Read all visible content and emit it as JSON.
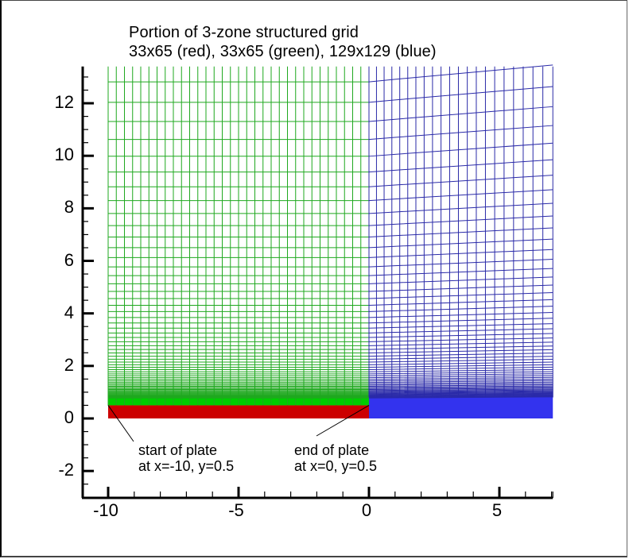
{
  "title": {
    "line1": "Portion of 3-zone structured grid",
    "line2": "33x65 (red), 33x65 (green), 129x129 (blue)"
  },
  "colors": {
    "red_zone": "#cc0000",
    "green_zone": "#00cc00",
    "green_lines": "#1fa81f",
    "blue_zone": "#3333ee",
    "blue_lines": "#2a2aa8",
    "axis": "#000000"
  },
  "axes": {
    "x": {
      "range": [
        -10,
        7.05
      ],
      "major_ticks": [
        -10,
        -5,
        0,
        5
      ],
      "tick_labels": [
        "-10",
        "-5",
        "0",
        "5"
      ],
      "minor_step": 1
    },
    "y": {
      "range": [
        -3,
        13.4
      ],
      "major_ticks": [
        -2,
        0,
        2,
        4,
        6,
        8,
        10,
        12
      ],
      "tick_labels": [
        "-2",
        "0",
        "2",
        "4",
        "6",
        "8",
        "10",
        "12"
      ],
      "minor_step": 0.5
    }
  },
  "zones": [
    {
      "name": "red",
      "dims": "33x65",
      "x_range": [
        -10,
        0
      ],
      "y_range": [
        0,
        0.5
      ]
    },
    {
      "name": "green",
      "dims": "33x65",
      "x_range": [
        -10,
        0
      ],
      "y_range": [
        0.5,
        13.4
      ]
    },
    {
      "name": "blue",
      "dims": "129x129",
      "x_range": [
        0,
        7.05
      ],
      "y_range": [
        0,
        13.4
      ]
    }
  ],
  "annotations": [
    {
      "line1": "start of plate",
      "line2": "at x=-10, y=0.5",
      "point": [
        -10,
        0.5
      ]
    },
    {
      "line1": "end of plate",
      "line2": "at x=0, y=0.5",
      "point": [
        0,
        0.5
      ]
    }
  ]
}
